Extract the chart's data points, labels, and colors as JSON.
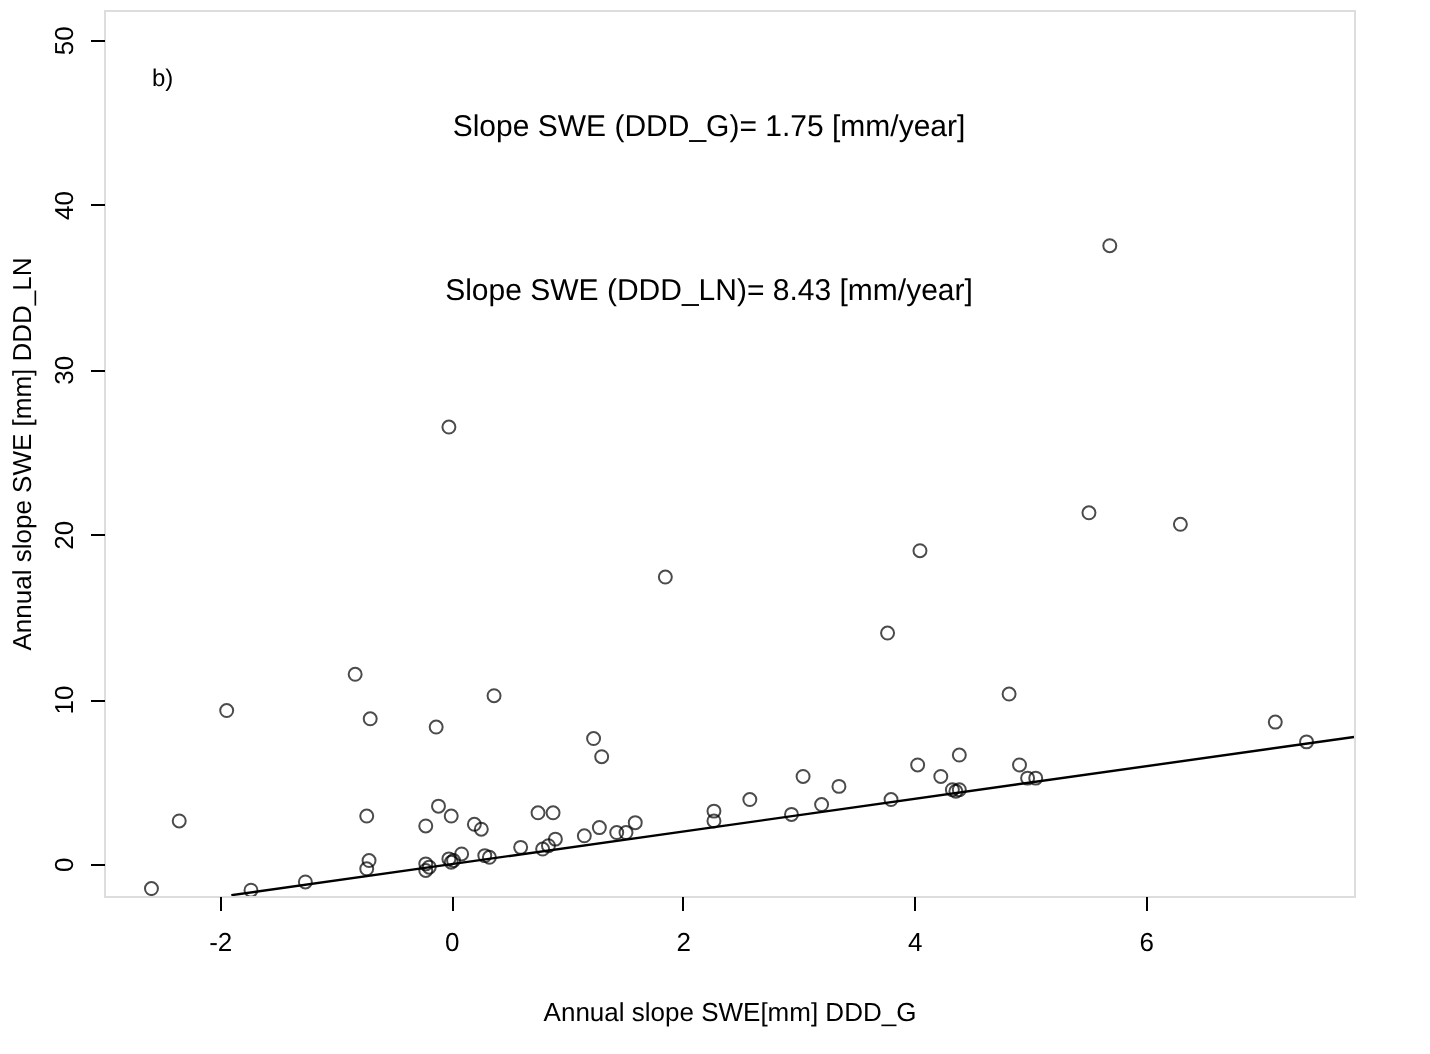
{
  "chart_data": {
    "type": "scatter",
    "xlabel": "Annual slope SWE[mm] DDD_G",
    "ylabel": "Annual slope SWE [mm] DDD_LN",
    "annotations": [
      "b)",
      "Slope SWE (DDD_G)= 1.75  [mm/year]",
      "Slope SWE (DDD_LN)= 8.43  [mm/year]"
    ],
    "xlim": [
      -3,
      7.8
    ],
    "ylim": [
      -1.95,
      51.8
    ],
    "xticks": [
      -2,
      0,
      2,
      4,
      6
    ],
    "yticks": [
      0,
      10,
      20,
      30,
      40,
      50
    ],
    "grid": false,
    "marker": "circle",
    "series": [
      {
        "color": "#000000",
        "x": [
          -2.59,
          -2.35,
          -1.94,
          -1.73,
          -1.26,
          -0.83,
          -0.7,
          -0.73,
          -0.71,
          -0.73,
          -0.13,
          -0.22,
          -0.11,
          0.0,
          -0.22,
          -0.19,
          -0.22,
          -0.02,
          0.0,
          0.02,
          0.09,
          0.37,
          0.2,
          0.26,
          0.29,
          0.33,
          0.6,
          0.75,
          0.88,
          0.79,
          0.84,
          0.9,
          1.23,
          1.3,
          1.15,
          1.28,
          1.43,
          1.51,
          1.59,
          2.27,
          2.27,
          3.77,
          2.58,
          2.94,
          3.04,
          3.2,
          3.35,
          3.8,
          4.03,
          4.23,
          4.39,
          4.33,
          4.36,
          4.39,
          4.82,
          4.91,
          4.98,
          5.05,
          7.12,
          7.39,
          -0.02,
          1.85,
          4.05,
          5.69,
          5.51,
          6.3
        ],
        "values": [
          -1.5,
          2.6,
          9.3,
          -1.6,
          -1.1,
          11.5,
          8.8,
          2.9,
          0.2,
          -0.3,
          8.3,
          2.3,
          3.5,
          2.9,
          0.0,
          -0.2,
          -0.4,
          0.3,
          0.1,
          0.2,
          0.6,
          10.2,
          2.4,
          2.1,
          0.5,
          0.4,
          1.0,
          3.1,
          3.1,
          0.9,
          1.1,
          1.5,
          7.6,
          6.5,
          1.7,
          2.2,
          1.9,
          1.9,
          2.5,
          3.2,
          2.6,
          14.0,
          3.9,
          3.0,
          5.3,
          3.6,
          4.7,
          3.9,
          6.0,
          5.3,
          6.6,
          4.5,
          4.4,
          4.5,
          10.3,
          6.0,
          5.2,
          5.2,
          8.6,
          7.4,
          26.5,
          17.4,
          19.0,
          37.5,
          21.3,
          20.6
        ]
      },
      {
        "type": "line",
        "color": "#000000",
        "marker": "none",
        "line_style": "solid",
        "x": [
          -1.9,
          7.8
        ],
        "values": [
          -1.9,
          7.7
        ]
      }
    ]
  }
}
